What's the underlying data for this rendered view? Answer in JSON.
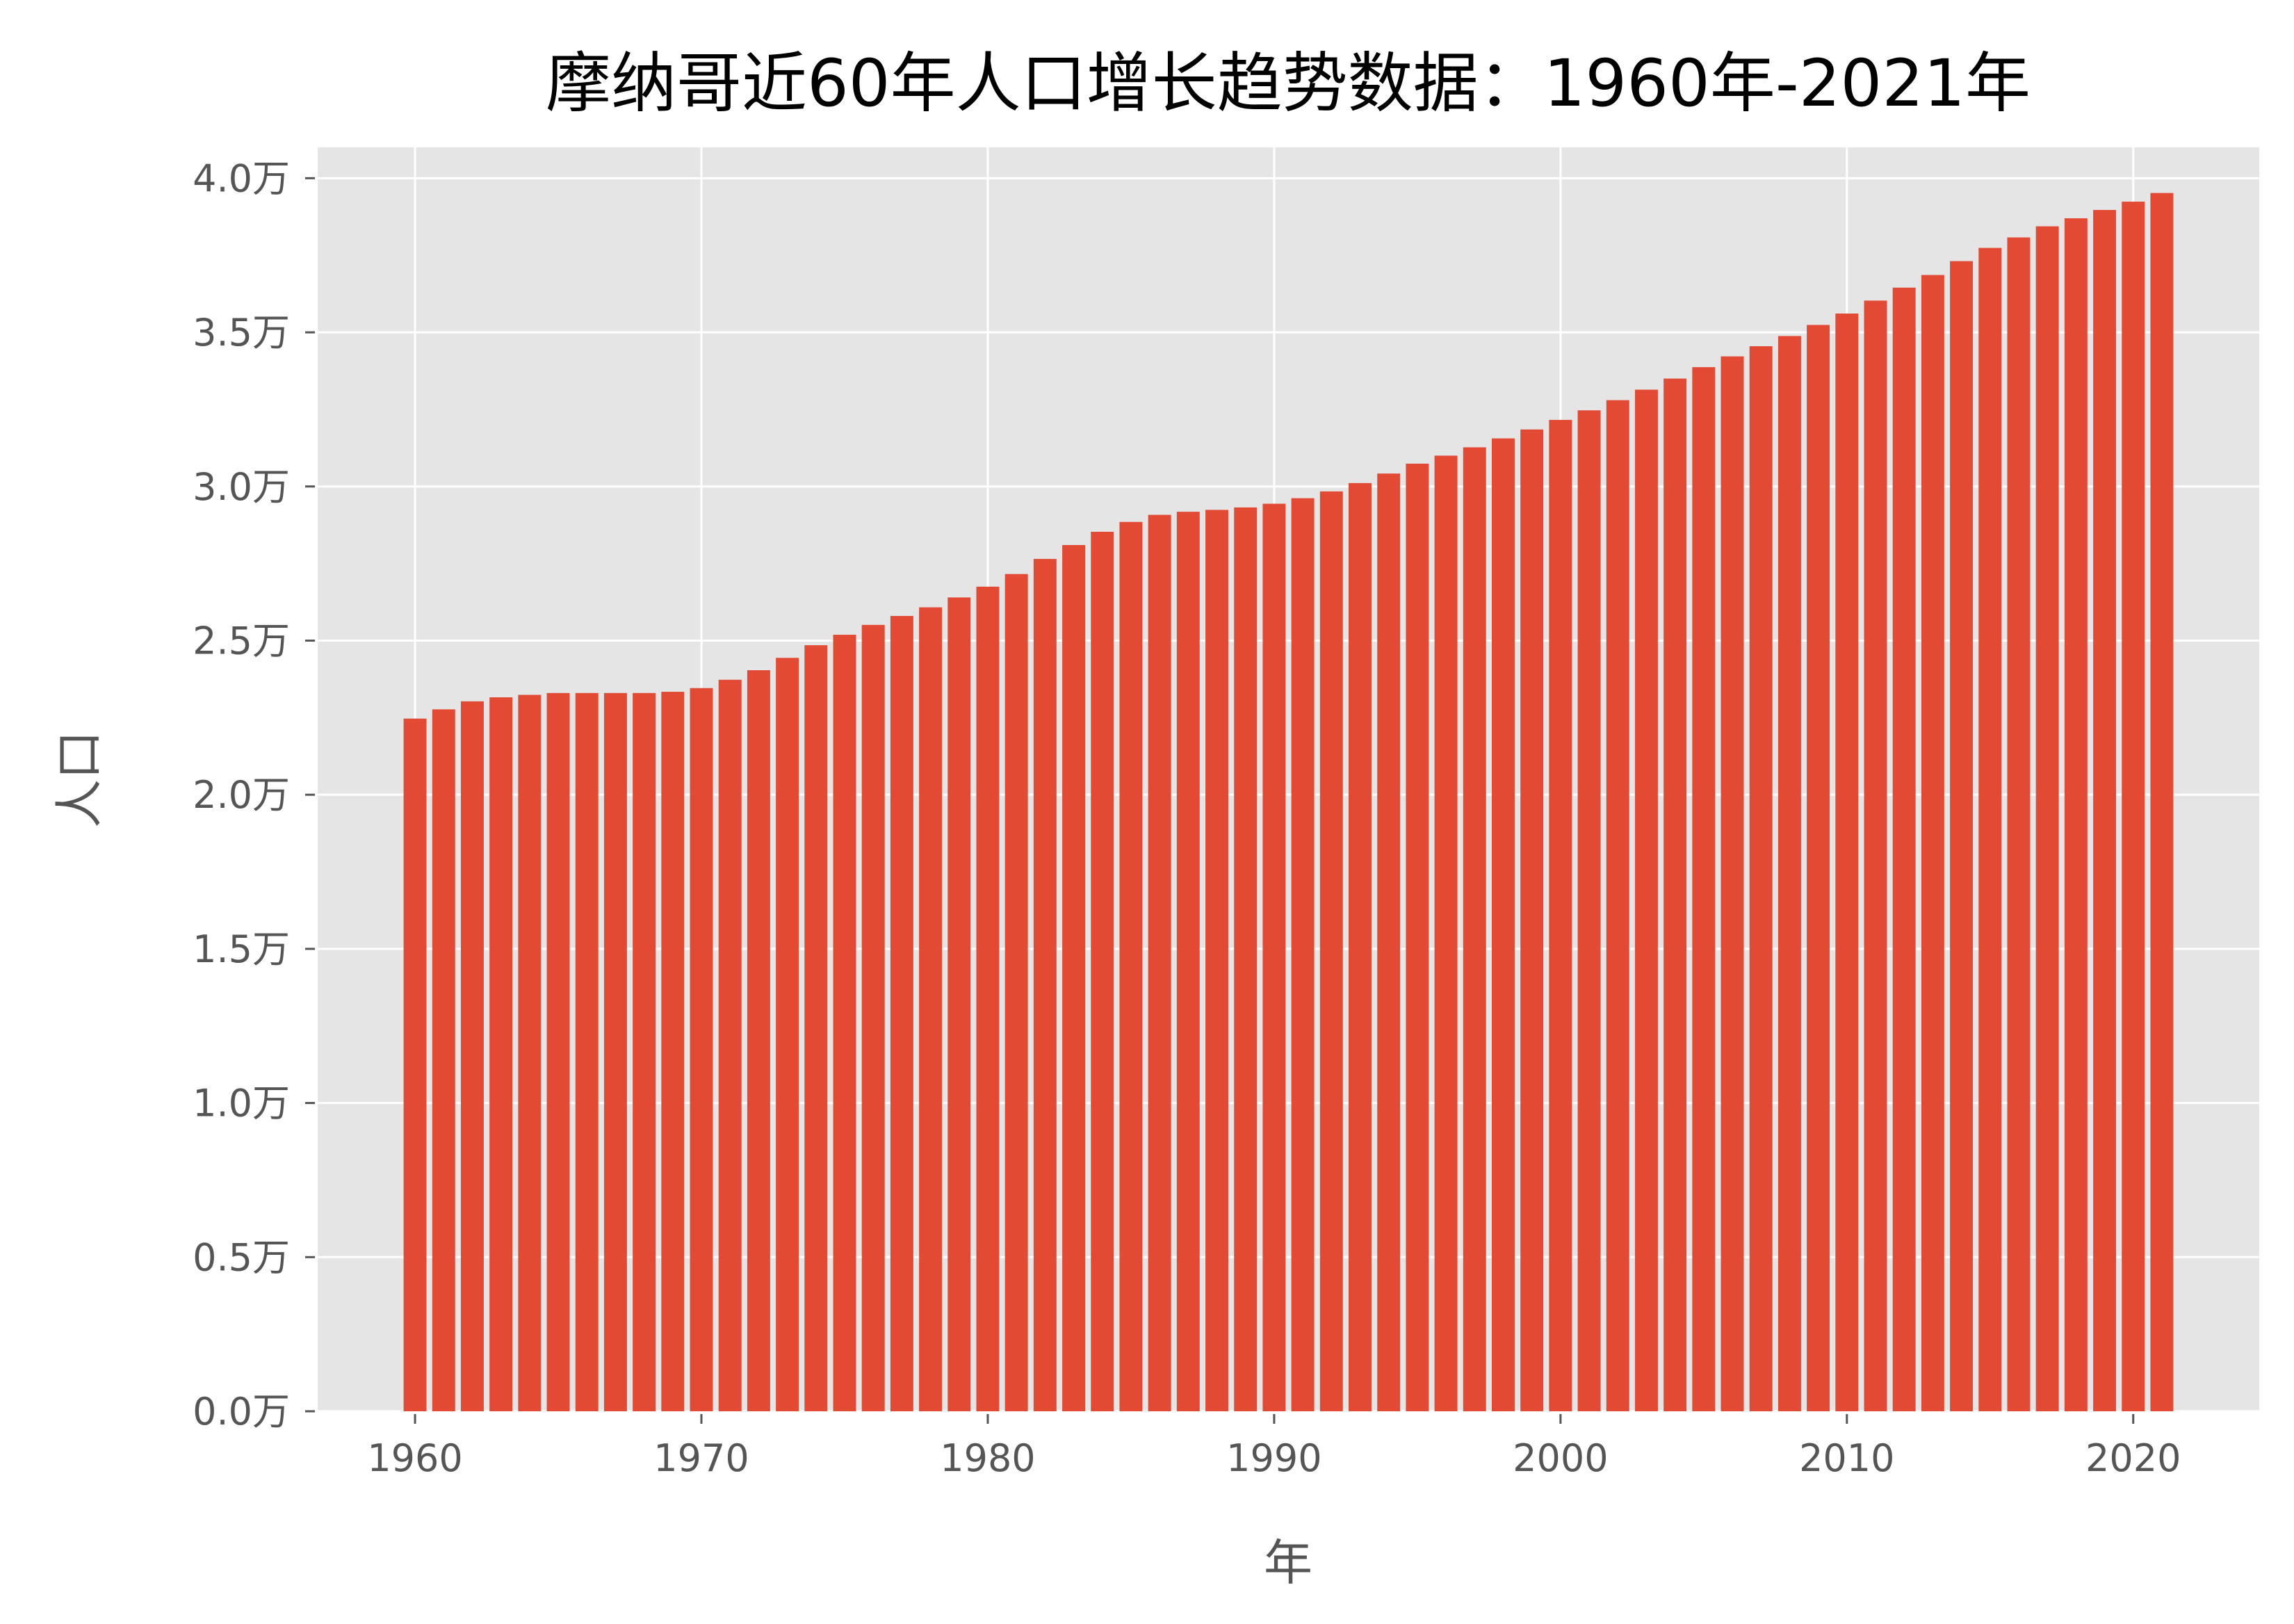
{
  "chart_data": {
    "type": "bar",
    "title": "摩纳哥近60年人口增长趋势数据：1960年-2021年",
    "xlabel": "年",
    "ylabel": "人口",
    "ylim": [
      0,
      41000
    ],
    "xlim": [
      1956.6,
      2024.4
    ],
    "grid": true,
    "legend": "none",
    "colors": {
      "bar": "#E24A33",
      "plot_bg": "#E5E5E5",
      "grid": "#FFFFFF",
      "tick": "#555555"
    },
    "x_ticks": [
      1960,
      1970,
      1980,
      1990,
      2000,
      2010,
      2020
    ],
    "x_tick_labels": [
      "1960",
      "1970",
      "1980",
      "1990",
      "2000",
      "2010",
      "2020"
    ],
    "y_ticks": [
      0,
      5000,
      10000,
      15000,
      20000,
      25000,
      30000,
      35000,
      40000
    ],
    "y_tick_labels": [
      "0.0万",
      "0.5万",
      "1.0万",
      "1.5万",
      "2.0万",
      "2.5万",
      "3.0万",
      "3.5万",
      "4.0万"
    ],
    "categories": [
      1960,
      1961,
      1962,
      1963,
      1964,
      1965,
      1966,
      1967,
      1968,
      1969,
      1970,
      1971,
      1972,
      1973,
      1974,
      1975,
      1976,
      1977,
      1978,
      1979,
      1980,
      1981,
      1982,
      1983,
      1984,
      1985,
      1986,
      1987,
      1988,
      1989,
      1990,
      1991,
      1992,
      1993,
      1994,
      1995,
      1996,
      1997,
      1998,
      1999,
      2000,
      2001,
      2002,
      2003,
      2004,
      2005,
      2006,
      2007,
      2008,
      2009,
      2010,
      2011,
      2012,
      2013,
      2014,
      2015,
      2016,
      2017,
      2018,
      2019,
      2020,
      2021
    ],
    "values": [
      22470,
      22770,
      23030,
      23160,
      23240,
      23300,
      23300,
      23300,
      23300,
      23340,
      23460,
      23730,
      24040,
      24440,
      24850,
      25190,
      25510,
      25800,
      26080,
      26400,
      26750,
      27160,
      27650,
      28100,
      28530,
      28850,
      29080,
      29180,
      29240,
      29320,
      29440,
      29620,
      29840,
      30110,
      30420,
      30740,
      31000,
      31270,
      31560,
      31850,
      32160,
      32470,
      32800,
      33140,
      33500,
      33870,
      34220,
      34550,
      34880,
      35240,
      35610,
      36030,
      36450,
      36860,
      37310,
      37740,
      38080,
      38440,
      38700,
      38970,
      39240,
      39520
    ]
  }
}
